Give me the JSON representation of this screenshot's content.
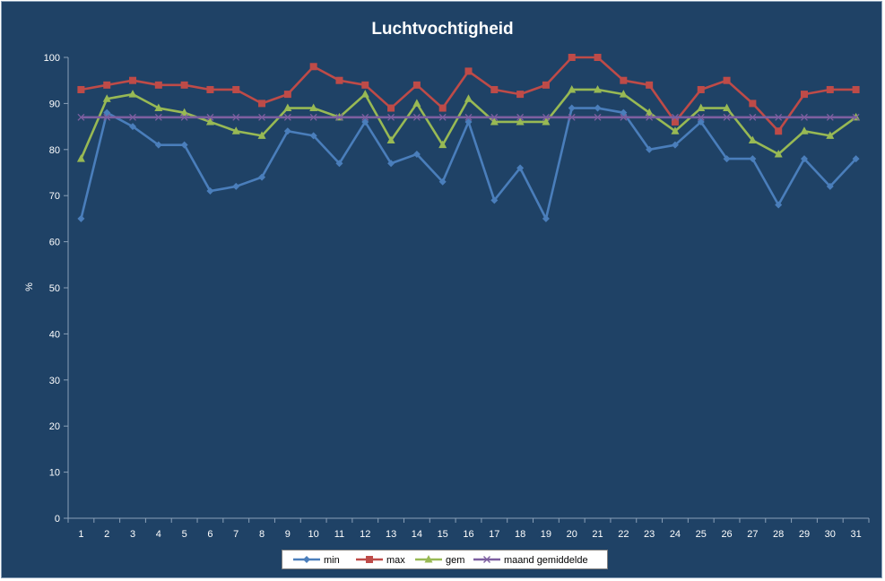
{
  "chart_data": {
    "type": "line",
    "title": "Luchtvochtigheid",
    "xlabel": "",
    "ylabel": "%",
    "ylim": [
      0,
      100
    ],
    "yticks": [
      0,
      10,
      20,
      30,
      40,
      50,
      60,
      70,
      80,
      90,
      100
    ],
    "categories": [
      "1",
      "2",
      "3",
      "4",
      "5",
      "6",
      "7",
      "8",
      "9",
      "10",
      "11",
      "12",
      "13",
      "14",
      "15",
      "16",
      "17",
      "18",
      "19",
      "20",
      "21",
      "22",
      "23",
      "24",
      "25",
      "26",
      "27",
      "28",
      "29",
      "30",
      "31"
    ],
    "grid": false,
    "legend_position": "bottom",
    "series": [
      {
        "name": "min",
        "color": "#4a7ebb",
        "marker": "diamond",
        "values": [
          65,
          88,
          85,
          81,
          81,
          71,
          72,
          74,
          84,
          83,
          77,
          86,
          77,
          79,
          73,
          86,
          69,
          76,
          65,
          89,
          89,
          88,
          80,
          81,
          86,
          78,
          78,
          68,
          78,
          72,
          78
        ]
      },
      {
        "name": "max",
        "color": "#be4b48",
        "marker": "square",
        "values": [
          93,
          94,
          95,
          94,
          94,
          93,
          93,
          90,
          92,
          98,
          95,
          94,
          89,
          94,
          89,
          97,
          93,
          92,
          94,
          100,
          100,
          95,
          94,
          86,
          93,
          95,
          90,
          84,
          92,
          93,
          93
        ]
      },
      {
        "name": "gem",
        "color": "#98b954",
        "marker": "triangle",
        "values": [
          78,
          91,
          92,
          89,
          88,
          86,
          84,
          83,
          89,
          89,
          87,
          92,
          82,
          90,
          81,
          91,
          86,
          86,
          86,
          93,
          93,
          92,
          88,
          84,
          89,
          89,
          82,
          79,
          84,
          83,
          87
        ]
      },
      {
        "name": "maand gemiddelde",
        "color": "#7d5fa0",
        "marker": "x",
        "values": [
          87,
          87,
          87,
          87,
          87,
          87,
          87,
          87,
          87,
          87,
          87,
          87,
          87,
          87,
          87,
          87,
          87,
          87,
          87,
          87,
          87,
          87,
          87,
          87,
          87,
          87,
          87,
          87,
          87,
          87,
          87
        ]
      }
    ]
  }
}
